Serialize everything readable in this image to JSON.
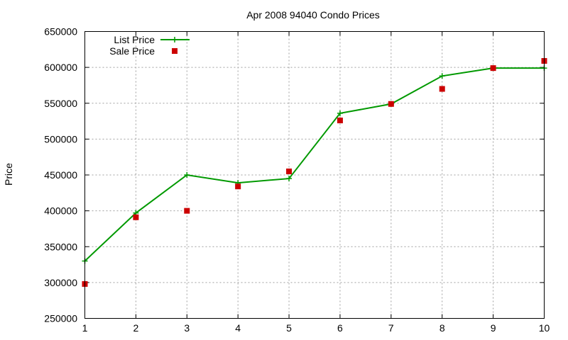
{
  "chart_data": {
    "type": "line",
    "title": "Apr 2008 94040 Condo Prices",
    "xlabel": "",
    "ylabel": "Price",
    "x": [
      1,
      2,
      3,
      4,
      5,
      6,
      7,
      8,
      9,
      10
    ],
    "xlim": [
      1,
      10
    ],
    "ylim": [
      250000,
      650000
    ],
    "x_ticks": [
      "1",
      "2",
      "3",
      "4",
      "5",
      "6",
      "7",
      "8",
      "9",
      "10"
    ],
    "y_ticks": [
      "250000",
      "300000",
      "350000",
      "400000",
      "450000",
      "500000",
      "550000",
      "600000",
      "650000"
    ],
    "grid": true,
    "legend_position": "top-left",
    "series": [
      {
        "name": "List Price",
        "style": "linespoints",
        "marker": "plus",
        "color": "#009900",
        "values": [
          330000,
          397000,
          450000,
          439000,
          445000,
          536000,
          549000,
          588000,
          599000,
          599000
        ]
      },
      {
        "name": "Sale Price",
        "style": "points",
        "marker": "square",
        "color": "#cc0000",
        "values": [
          298000,
          391000,
          400000,
          434000,
          455000,
          526000,
          549000,
          570000,
          599000,
          609000
        ]
      }
    ]
  }
}
